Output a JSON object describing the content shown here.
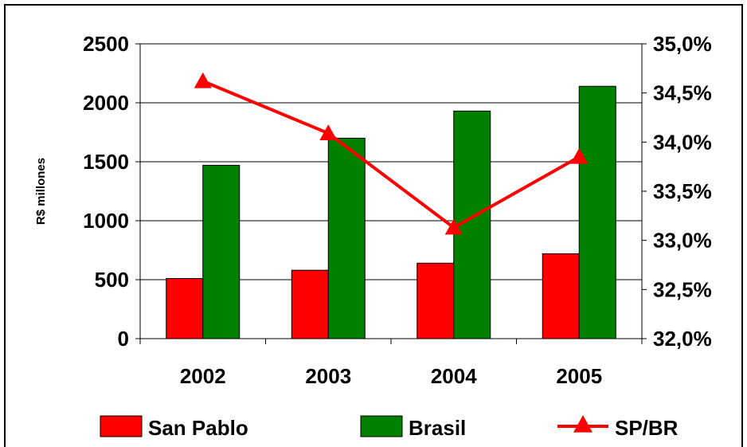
{
  "chart_data": {
    "type": "bar",
    "title": "",
    "categories": [
      "2002",
      "2003",
      "2004",
      "2005"
    ],
    "ylabel": "R$ millones",
    "ylim": [
      0,
      2500
    ],
    "yticks": [
      "0",
      "500",
      "1000",
      "1500",
      "2000",
      "2500"
    ],
    "y2lim": [
      32.0,
      35.0
    ],
    "y2ticks": [
      "32,0%",
      "32,5%",
      "33,0%",
      "33,5%",
      "34,0%",
      "34,5%",
      "35,0%"
    ],
    "grid": true,
    "legend_position": "bottom",
    "series": [
      {
        "name": "San Pablo",
        "type": "bar",
        "axis": "left",
        "color": "#ff0000",
        "values": [
          510,
          580,
          640,
          720
        ]
      },
      {
        "name": "Brasil",
        "type": "bar",
        "axis": "left",
        "color": "#008000",
        "values": [
          1470,
          1700,
          1930,
          2140
        ]
      },
      {
        "name": "SP/BR",
        "type": "line",
        "axis": "right",
        "marker": "triangle",
        "color": "#ff0000",
        "values": [
          34.62,
          34.09,
          33.13,
          33.85
        ]
      }
    ]
  }
}
